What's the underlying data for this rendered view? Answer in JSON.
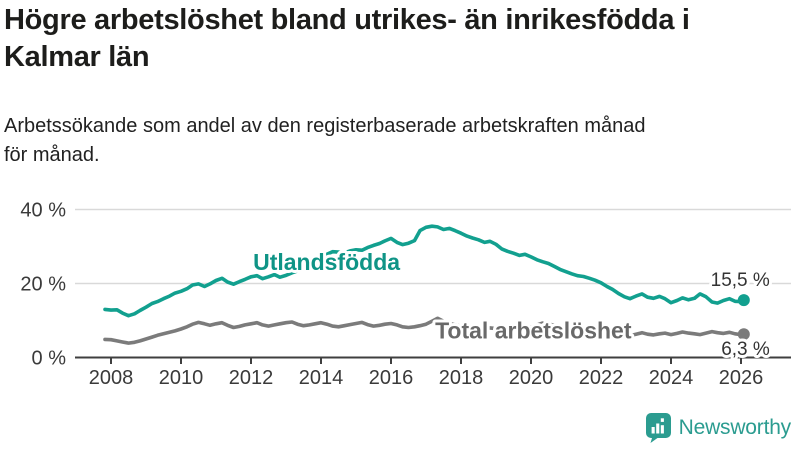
{
  "header": {
    "title": "Högre arbetslöshet bland utrikes- än inrikesfödda i Kalmar län",
    "title_lines": [
      "Högre arbetslöshet bland utrikes- än inrikesfödda i",
      "Kalmar län"
    ],
    "subtitle": "Arbetssökande som andel av den registerbaserade arbetskraften månad för månad.",
    "subtitle_lines": [
      "Arbetssökande som andel av den registerbaserade arbetskraften månad",
      "för månad."
    ]
  },
  "logo": {
    "text": "Newsworthy",
    "color": "#2b9c90",
    "icon": "newsworthy-speech-bubble-bar-chart-icon"
  },
  "chart_data": {
    "type": "line",
    "title": "Högre arbetslöshet bland utrikes- än inrikesfödda i Kalmar län",
    "subtitle": "Arbetssökande som andel av den registerbaserade arbetskraften månad för månad.",
    "unit": "%",
    "grid": true,
    "legend_position": "inline-labels",
    "x_axis": {
      "range": [
        2007.83,
        2026.4
      ],
      "ticks": [
        2008,
        2010,
        2012,
        2014,
        2016,
        2018,
        2020,
        2022,
        2024,
        2026
      ],
      "tick_labels": [
        "2008",
        "2010",
        "2012",
        "2014",
        "2016",
        "2018",
        "2020",
        "2022",
        "2024",
        "2026"
      ]
    },
    "y_axis": {
      "range": [
        0,
        44
      ],
      "ticks": [
        0,
        20,
        40
      ],
      "tick_labels": [
        "0 %",
        "20 %",
        "40 %"
      ]
    },
    "colors": {
      "grid": "#d9d9d9",
      "axis": "#3f3f3f",
      "tick_text": "#3a3a3a",
      "value_text": "#333333"
    },
    "series": [
      {
        "id": "utlandsfodda",
        "name": "Utlandsfödda",
        "color": "#12a08f",
        "label_color": "#0f9486",
        "label_pos": [
          2012.06,
          23.6
        ],
        "end_value": 15.5,
        "end_label": "15,5 %",
        "end_label_side": "above",
        "points": [
          [
            2007.83,
            13.0
          ],
          [
            2008.0,
            12.8
          ],
          [
            2008.17,
            12.9
          ],
          [
            2008.33,
            12.0
          ],
          [
            2008.5,
            11.3
          ],
          [
            2008.67,
            11.8
          ],
          [
            2008.83,
            12.7
          ],
          [
            2009.0,
            13.6
          ],
          [
            2009.17,
            14.6
          ],
          [
            2009.33,
            15.1
          ],
          [
            2009.5,
            15.9
          ],
          [
            2009.67,
            16.6
          ],
          [
            2009.83,
            17.4
          ],
          [
            2010.0,
            17.9
          ],
          [
            2010.17,
            18.6
          ],
          [
            2010.33,
            19.6
          ],
          [
            2010.5,
            19.9
          ],
          [
            2010.67,
            19.2
          ],
          [
            2010.83,
            19.9
          ],
          [
            2011.0,
            20.8
          ],
          [
            2011.17,
            21.4
          ],
          [
            2011.33,
            20.4
          ],
          [
            2011.5,
            19.8
          ],
          [
            2011.67,
            20.5
          ],
          [
            2011.83,
            21.1
          ],
          [
            2012.0,
            21.8
          ],
          [
            2012.17,
            22.1
          ],
          [
            2012.33,
            21.3
          ],
          [
            2012.5,
            21.8
          ],
          [
            2012.67,
            22.4
          ],
          [
            2012.83,
            21.7
          ],
          [
            2013.0,
            22.2
          ],
          [
            2013.17,
            22.9
          ],
          [
            2013.33,
            23.4
          ],
          [
            2013.5,
            23.9
          ],
          [
            2013.67,
            24.6
          ],
          [
            2013.83,
            25.6
          ],
          [
            2014.0,
            26.7
          ],
          [
            2014.17,
            27.9
          ],
          [
            2014.33,
            28.6
          ],
          [
            2014.5,
            28.5
          ],
          [
            2014.67,
            28.3
          ],
          [
            2014.83,
            28.8
          ],
          [
            2015.0,
            29.1
          ],
          [
            2015.17,
            29.0
          ],
          [
            2015.33,
            29.7
          ],
          [
            2015.5,
            30.3
          ],
          [
            2015.67,
            30.8
          ],
          [
            2015.83,
            31.5
          ],
          [
            2016.0,
            32.2
          ],
          [
            2016.17,
            31.1
          ],
          [
            2016.33,
            30.5
          ],
          [
            2016.5,
            30.9
          ],
          [
            2016.67,
            31.6
          ],
          [
            2016.83,
            34.3
          ],
          [
            2017.0,
            35.2
          ],
          [
            2017.17,
            35.5
          ],
          [
            2017.33,
            35.3
          ],
          [
            2017.5,
            34.6
          ],
          [
            2017.67,
            34.9
          ],
          [
            2017.83,
            34.3
          ],
          [
            2018.0,
            33.6
          ],
          [
            2018.17,
            32.8
          ],
          [
            2018.33,
            32.3
          ],
          [
            2018.5,
            31.8
          ],
          [
            2018.67,
            31.1
          ],
          [
            2018.83,
            31.4
          ],
          [
            2019.0,
            30.6
          ],
          [
            2019.17,
            29.3
          ],
          [
            2019.33,
            28.7
          ],
          [
            2019.5,
            28.2
          ],
          [
            2019.67,
            27.6
          ],
          [
            2019.83,
            27.9
          ],
          [
            2020.0,
            27.2
          ],
          [
            2020.17,
            26.4
          ],
          [
            2020.33,
            25.9
          ],
          [
            2020.5,
            25.4
          ],
          [
            2020.67,
            24.6
          ],
          [
            2020.83,
            23.8
          ],
          [
            2021.0,
            23.2
          ],
          [
            2021.17,
            22.6
          ],
          [
            2021.33,
            22.1
          ],
          [
            2021.5,
            21.9
          ],
          [
            2021.67,
            21.4
          ],
          [
            2021.83,
            20.9
          ],
          [
            2022.0,
            20.2
          ],
          [
            2022.17,
            19.2
          ],
          [
            2022.33,
            18.4
          ],
          [
            2022.5,
            17.3
          ],
          [
            2022.67,
            16.4
          ],
          [
            2022.83,
            15.9
          ],
          [
            2023.0,
            16.6
          ],
          [
            2023.17,
            17.2
          ],
          [
            2023.33,
            16.3
          ],
          [
            2023.5,
            16.0
          ],
          [
            2023.67,
            16.5
          ],
          [
            2023.83,
            15.9
          ],
          [
            2024.0,
            14.8
          ],
          [
            2024.17,
            15.4
          ],
          [
            2024.33,
            16.1
          ],
          [
            2024.5,
            15.6
          ],
          [
            2024.67,
            16.0
          ],
          [
            2024.83,
            17.2
          ],
          [
            2025.0,
            16.4
          ],
          [
            2025.17,
            15.0
          ],
          [
            2025.33,
            14.7
          ],
          [
            2025.5,
            15.4
          ],
          [
            2025.67,
            15.9
          ],
          [
            2025.83,
            15.2
          ],
          [
            2026.0,
            15.1
          ],
          [
            2026.08,
            15.5
          ]
        ]
      },
      {
        "id": "total",
        "name": "Total arbetslöshet",
        "color": "#7b7b7b",
        "label_color": "#696969",
        "label_pos": [
          2017.26,
          5.2
        ],
        "end_value": 6.3,
        "end_label": "6,3 %",
        "end_label_side": "below",
        "points": [
          [
            2007.83,
            4.9
          ],
          [
            2008.0,
            4.8
          ],
          [
            2008.17,
            4.5
          ],
          [
            2008.33,
            4.2
          ],
          [
            2008.5,
            3.9
          ],
          [
            2008.67,
            4.1
          ],
          [
            2008.83,
            4.5
          ],
          [
            2009.0,
            5.0
          ],
          [
            2009.17,
            5.5
          ],
          [
            2009.33,
            6.0
          ],
          [
            2009.5,
            6.4
          ],
          [
            2009.67,
            6.8
          ],
          [
            2009.83,
            7.2
          ],
          [
            2010.0,
            7.7
          ],
          [
            2010.17,
            8.3
          ],
          [
            2010.33,
            9.0
          ],
          [
            2010.5,
            9.5
          ],
          [
            2010.67,
            9.1
          ],
          [
            2010.83,
            8.7
          ],
          [
            2011.0,
            9.1
          ],
          [
            2011.17,
            9.4
          ],
          [
            2011.33,
            8.7
          ],
          [
            2011.5,
            8.1
          ],
          [
            2011.67,
            8.4
          ],
          [
            2011.83,
            8.8
          ],
          [
            2012.0,
            9.1
          ],
          [
            2012.17,
            9.4
          ],
          [
            2012.33,
            8.8
          ],
          [
            2012.5,
            8.5
          ],
          [
            2012.67,
            8.8
          ],
          [
            2012.83,
            9.1
          ],
          [
            2013.0,
            9.4
          ],
          [
            2013.17,
            9.6
          ],
          [
            2013.33,
            9.0
          ],
          [
            2013.5,
            8.6
          ],
          [
            2013.67,
            8.8
          ],
          [
            2013.83,
            9.1
          ],
          [
            2014.0,
            9.4
          ],
          [
            2014.17,
            9.0
          ],
          [
            2014.33,
            8.5
          ],
          [
            2014.5,
            8.3
          ],
          [
            2014.67,
            8.6
          ],
          [
            2014.83,
            8.9
          ],
          [
            2015.0,
            9.2
          ],
          [
            2015.17,
            9.5
          ],
          [
            2015.33,
            8.9
          ],
          [
            2015.5,
            8.5
          ],
          [
            2015.67,
            8.7
          ],
          [
            2015.83,
            9.0
          ],
          [
            2016.0,
            9.2
          ],
          [
            2016.17,
            8.8
          ],
          [
            2016.33,
            8.3
          ],
          [
            2016.5,
            8.1
          ],
          [
            2016.67,
            8.3
          ],
          [
            2016.83,
            8.6
          ],
          [
            2017.0,
            9.0
          ],
          [
            2017.17,
            9.8
          ],
          [
            2017.33,
            10.6
          ],
          [
            2017.5,
            9.8
          ],
          [
            2017.67,
            9.2
          ],
          [
            2017.83,
            8.8
          ],
          [
            2018.0,
            8.5
          ],
          [
            2018.17,
            8.2
          ],
          [
            2018.33,
            7.8
          ],
          [
            2018.5,
            7.6
          ],
          [
            2018.67,
            7.8
          ],
          [
            2018.83,
            8.0
          ],
          [
            2019.0,
            7.8
          ],
          [
            2019.17,
            7.5
          ],
          [
            2019.33,
            7.3
          ],
          [
            2019.5,
            7.5
          ],
          [
            2019.67,
            7.7
          ],
          [
            2019.83,
            7.9
          ],
          [
            2020.0,
            8.2
          ],
          [
            2020.17,
            8.8
          ],
          [
            2020.33,
            9.3
          ],
          [
            2020.5,
            9.0
          ],
          [
            2020.67,
            8.7
          ],
          [
            2020.83,
            8.4
          ],
          [
            2021.0,
            8.1
          ],
          [
            2021.17,
            7.8
          ],
          [
            2021.33,
            7.5
          ],
          [
            2021.5,
            7.2
          ],
          [
            2021.67,
            7.0
          ],
          [
            2021.83,
            6.9
          ],
          [
            2022.0,
            6.8
          ],
          [
            2022.17,
            6.6
          ],
          [
            2022.33,
            6.4
          ],
          [
            2022.5,
            6.1
          ],
          [
            2022.67,
            5.8
          ],
          [
            2022.83,
            5.9
          ],
          [
            2023.0,
            6.3
          ],
          [
            2023.17,
            6.7
          ],
          [
            2023.33,
            6.3
          ],
          [
            2023.5,
            6.1
          ],
          [
            2023.67,
            6.4
          ],
          [
            2023.83,
            6.6
          ],
          [
            2024.0,
            6.2
          ],
          [
            2024.17,
            6.5
          ],
          [
            2024.33,
            6.9
          ],
          [
            2024.5,
            6.6
          ],
          [
            2024.67,
            6.4
          ],
          [
            2024.83,
            6.2
          ],
          [
            2025.0,
            6.6
          ],
          [
            2025.17,
            7.0
          ],
          [
            2025.33,
            6.7
          ],
          [
            2025.5,
            6.5
          ],
          [
            2025.67,
            6.8
          ],
          [
            2025.83,
            6.4
          ],
          [
            2026.0,
            6.2
          ],
          [
            2026.08,
            6.3
          ]
        ]
      }
    ]
  }
}
